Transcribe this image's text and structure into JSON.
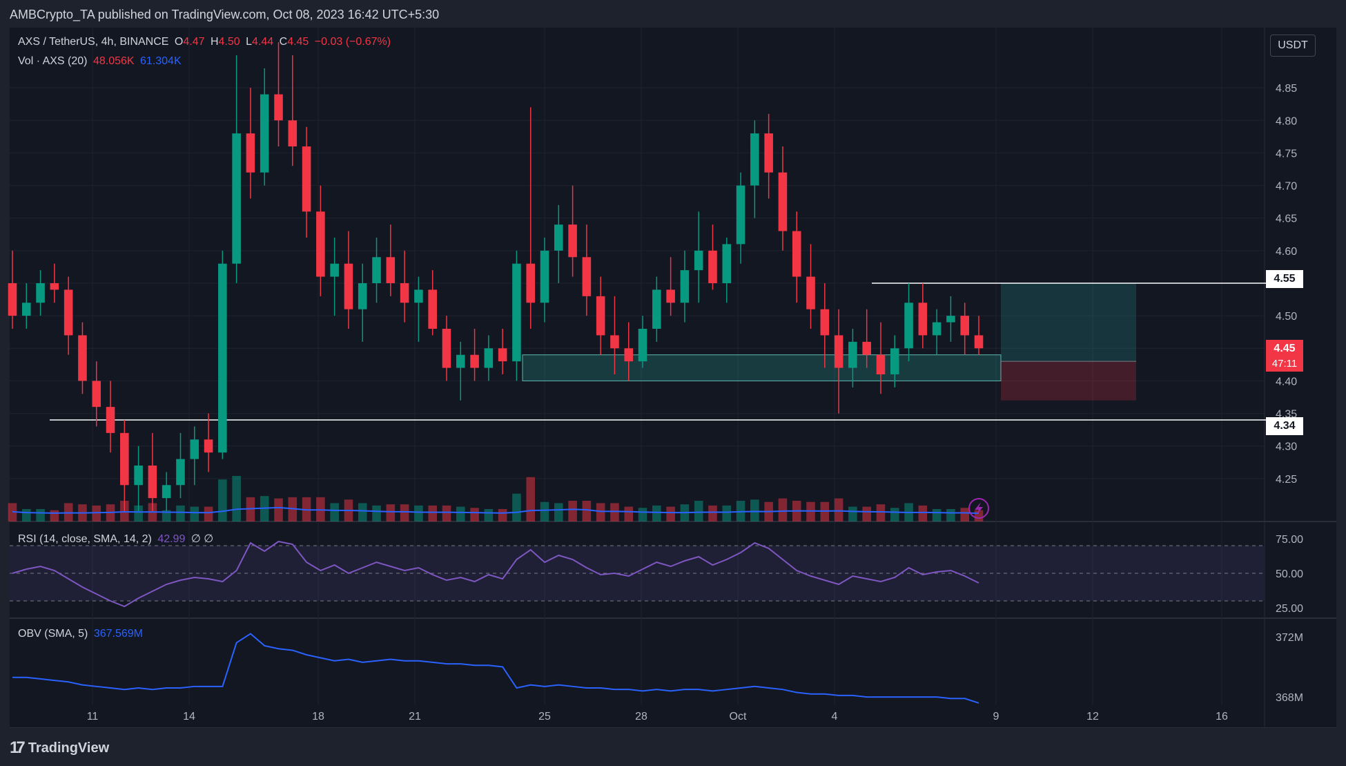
{
  "publisher": "AMBCrypto_TA published on TradingView.com, Oct 08, 2023 16:42 UTC+5:30",
  "footer_brand": "TradingView",
  "currency_button": "USDT",
  "legend": {
    "symbol": "AXS / TetherUS, 4h, BINANCE",
    "o_label": "O",
    "o_value": "4.47",
    "h_label": "H",
    "h_value": "4.50",
    "l_label": "L",
    "l_value": "4.44",
    "c_label": "C",
    "c_value": "4.45",
    "change": "−0.03 (−0.67%)",
    "vol_label": "Vol · AXS (20)",
    "vol_value1": "48.056K",
    "vol_value2": "61.304K"
  },
  "rsi_legend": {
    "label": "RSI (14, close, SMA, 14, 2)",
    "value": "42.99",
    "extra": "∅ ∅"
  },
  "obv_legend": {
    "label": "OBV (SMA, 5)",
    "value": "367.569M"
  },
  "price_tags": {
    "upper_level": "4.55",
    "lower_level": "4.34",
    "last_price": "4.45",
    "countdown": "47:11"
  },
  "colors": {
    "up": "#089981",
    "down": "#f23645",
    "background": "#131722",
    "panel": "#1e222d",
    "volume_ma": "#2962ff",
    "rsi": "#7e57c2",
    "obv": "#2962ff"
  },
  "icons": {
    "replay": "lightning-icon",
    "logo": "tradingview-logo-icon"
  },
  "chart_data": [
    {
      "type": "candlestick",
      "title": "AXS / TetherUS, 4h, BINANCE",
      "y_ticks": [
        "4.85",
        "4.80",
        "4.75",
        "4.70",
        "4.65",
        "4.60",
        "4.55",
        "4.50",
        "4.45",
        "4.40",
        "4.35",
        "4.30",
        "4.25"
      ],
      "x_ticks": [
        "11",
        "14",
        "18",
        "21",
        "25",
        "28",
        "Oct",
        "4",
        "9",
        "12",
        "16"
      ],
      "ylim": [
        4.2,
        4.9
      ],
      "ohlc": [
        [
          4.55,
          4.6,
          4.48,
          4.5
        ],
        [
          4.5,
          4.55,
          4.48,
          4.52
        ],
        [
          4.52,
          4.57,
          4.5,
          4.55
        ],
        [
          4.55,
          4.58,
          4.52,
          4.54
        ],
        [
          4.54,
          4.56,
          4.44,
          4.47
        ],
        [
          4.47,
          4.49,
          4.38,
          4.4
        ],
        [
          4.4,
          4.43,
          4.33,
          4.36
        ],
        [
          4.36,
          4.4,
          4.29,
          4.32
        ],
        [
          4.32,
          4.34,
          4.2,
          4.24
        ],
        [
          4.24,
          4.3,
          4.2,
          4.27
        ],
        [
          4.27,
          4.32,
          4.2,
          4.22
        ],
        [
          4.22,
          4.26,
          4.2,
          4.24
        ],
        [
          4.24,
          4.32,
          4.22,
          4.28
        ],
        [
          4.28,
          4.33,
          4.24,
          4.31
        ],
        [
          4.31,
          4.35,
          4.26,
          4.29
        ],
        [
          4.29,
          4.6,
          4.28,
          4.58
        ],
        [
          4.58,
          4.9,
          4.55,
          4.78
        ],
        [
          4.78,
          4.85,
          4.68,
          4.72
        ],
        [
          4.72,
          4.88,
          4.7,
          4.84
        ],
        [
          4.84,
          4.92,
          4.76,
          4.8
        ],
        [
          4.8,
          4.9,
          4.73,
          4.76
        ],
        [
          4.76,
          4.79,
          4.62,
          4.66
        ],
        [
          4.66,
          4.7,
          4.53,
          4.56
        ],
        [
          4.56,
          4.62,
          4.5,
          4.58
        ],
        [
          4.58,
          4.63,
          4.48,
          4.51
        ],
        [
          4.51,
          4.58,
          4.46,
          4.55
        ],
        [
          4.55,
          4.62,
          4.52,
          4.59
        ],
        [
          4.59,
          4.64,
          4.53,
          4.55
        ],
        [
          4.55,
          4.6,
          4.49,
          4.52
        ],
        [
          4.52,
          4.56,
          4.46,
          4.54
        ],
        [
          4.54,
          4.57,
          4.47,
          4.48
        ],
        [
          4.48,
          4.5,
          4.4,
          4.42
        ],
        [
          4.42,
          4.46,
          4.37,
          4.44
        ],
        [
          4.44,
          4.48,
          4.4,
          4.42
        ],
        [
          4.42,
          4.47,
          4.4,
          4.45
        ],
        [
          4.45,
          4.48,
          4.41,
          4.43
        ],
        [
          4.43,
          4.6,
          4.4,
          4.58
        ],
        [
          4.58,
          4.82,
          4.48,
          4.52
        ],
        [
          4.52,
          4.62,
          4.49,
          4.6
        ],
        [
          4.6,
          4.67,
          4.55,
          4.64
        ],
        [
          4.64,
          4.7,
          4.56,
          4.59
        ],
        [
          4.59,
          4.64,
          4.5,
          4.53
        ],
        [
          4.53,
          4.56,
          4.44,
          4.47
        ],
        [
          4.47,
          4.53,
          4.41,
          4.45
        ],
        [
          4.45,
          4.49,
          4.4,
          4.43
        ],
        [
          4.43,
          4.5,
          4.42,
          4.48
        ],
        [
          4.48,
          4.56,
          4.46,
          4.54
        ],
        [
          4.54,
          4.59,
          4.5,
          4.52
        ],
        [
          4.52,
          4.6,
          4.49,
          4.57
        ],
        [
          4.57,
          4.66,
          4.52,
          4.6
        ],
        [
          4.6,
          4.64,
          4.54,
          4.55
        ],
        [
          4.55,
          4.62,
          4.52,
          4.61
        ],
        [
          4.61,
          4.72,
          4.58,
          4.7
        ],
        [
          4.7,
          4.8,
          4.65,
          4.78
        ],
        [
          4.78,
          4.81,
          4.68,
          4.72
        ],
        [
          4.72,
          4.76,
          4.6,
          4.63
        ],
        [
          4.63,
          4.66,
          4.52,
          4.56
        ],
        [
          4.56,
          4.61,
          4.48,
          4.51
        ],
        [
          4.51,
          4.55,
          4.42,
          4.47
        ],
        [
          4.47,
          4.51,
          4.35,
          4.42
        ],
        [
          4.42,
          4.48,
          4.39,
          4.46
        ],
        [
          4.46,
          4.51,
          4.42,
          4.44
        ],
        [
          4.44,
          4.49,
          4.38,
          4.41
        ],
        [
          4.41,
          4.47,
          4.39,
          4.45
        ],
        [
          4.45,
          4.55,
          4.43,
          4.52
        ],
        [
          4.52,
          4.55,
          4.45,
          4.47
        ],
        [
          4.47,
          4.51,
          4.44,
          4.49
        ],
        [
          4.49,
          4.53,
          4.46,
          4.5
        ],
        [
          4.5,
          4.52,
          4.44,
          4.47
        ],
        [
          4.47,
          4.5,
          4.44,
          4.45
        ]
      ]
    },
    {
      "type": "bar",
      "title": "Vol · AXS (20)",
      "values": [
        48.056,
        61.304
      ]
    },
    {
      "type": "line",
      "title": "RSI (14, close, SMA, 14, 2)",
      "y_ticks": [
        "75.00",
        "50.00",
        "25.00"
      ],
      "ylim": [
        20,
        80
      ],
      "values": [
        50,
        53,
        55,
        52,
        46,
        40,
        35,
        30,
        26,
        32,
        37,
        42,
        45,
        47,
        46,
        44,
        52,
        72,
        66,
        73,
        71,
        58,
        52,
        56,
        50,
        54,
        58,
        55,
        52,
        54,
        49,
        45,
        47,
        44,
        49,
        46,
        60,
        67,
        58,
        63,
        60,
        54,
        49,
        50,
        48,
        53,
        58,
        55,
        59,
        62,
        56,
        60,
        65,
        72,
        68,
        60,
        52,
        48,
        45,
        42,
        48,
        46,
        44,
        47,
        54,
        49,
        51,
        52,
        48,
        43
      ],
      "value_label": "42.99"
    },
    {
      "type": "line",
      "title": "OBV (SMA, 5)",
      "y_ticks": [
        "372M",
        "368M"
      ],
      "ylim": [
        367.5,
        373.0
      ],
      "values": [
        369.3,
        369.3,
        369.2,
        369.1,
        369.0,
        368.8,
        368.7,
        368.6,
        368.5,
        368.6,
        368.5,
        368.6,
        368.6,
        368.7,
        368.7,
        368.7,
        371.6,
        372.2,
        371.4,
        371.2,
        371.1,
        370.8,
        370.6,
        370.4,
        370.5,
        370.3,
        370.4,
        370.5,
        370.4,
        370.4,
        370.3,
        370.2,
        370.2,
        370.1,
        370.1,
        370.0,
        368.6,
        368.8,
        368.7,
        368.8,
        368.7,
        368.6,
        368.6,
        368.5,
        368.5,
        368.4,
        368.5,
        368.4,
        368.5,
        368.5,
        368.4,
        368.5,
        368.6,
        368.7,
        368.6,
        368.5,
        368.3,
        368.2,
        368.2,
        368.1,
        368.1,
        368.0,
        368.0,
        368.0,
        368.0,
        368.0,
        368.0,
        367.9,
        367.9,
        367.6
      ],
      "value_label": "367.569M"
    }
  ]
}
